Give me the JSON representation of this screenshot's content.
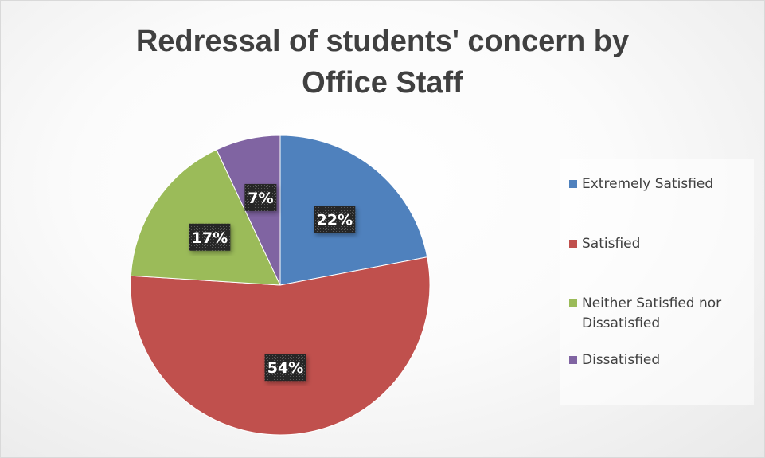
{
  "chart_data": {
    "type": "pie",
    "title": [
      "Redressal of students' concern by",
      "Office Staff"
    ],
    "categories": [
      "Extremely Satisfied",
      "Satisfied",
      "Neither Satisfied nor Dissatisfied",
      "Dissatisfied"
    ],
    "values": [
      22,
      54,
      17,
      7
    ],
    "data_labels": [
      "22%",
      "54%",
      "17%",
      "7%"
    ],
    "colors": [
      "#4f81bd",
      "#c0504d",
      "#9bbb59",
      "#8064a2"
    ],
    "legend": "right"
  }
}
